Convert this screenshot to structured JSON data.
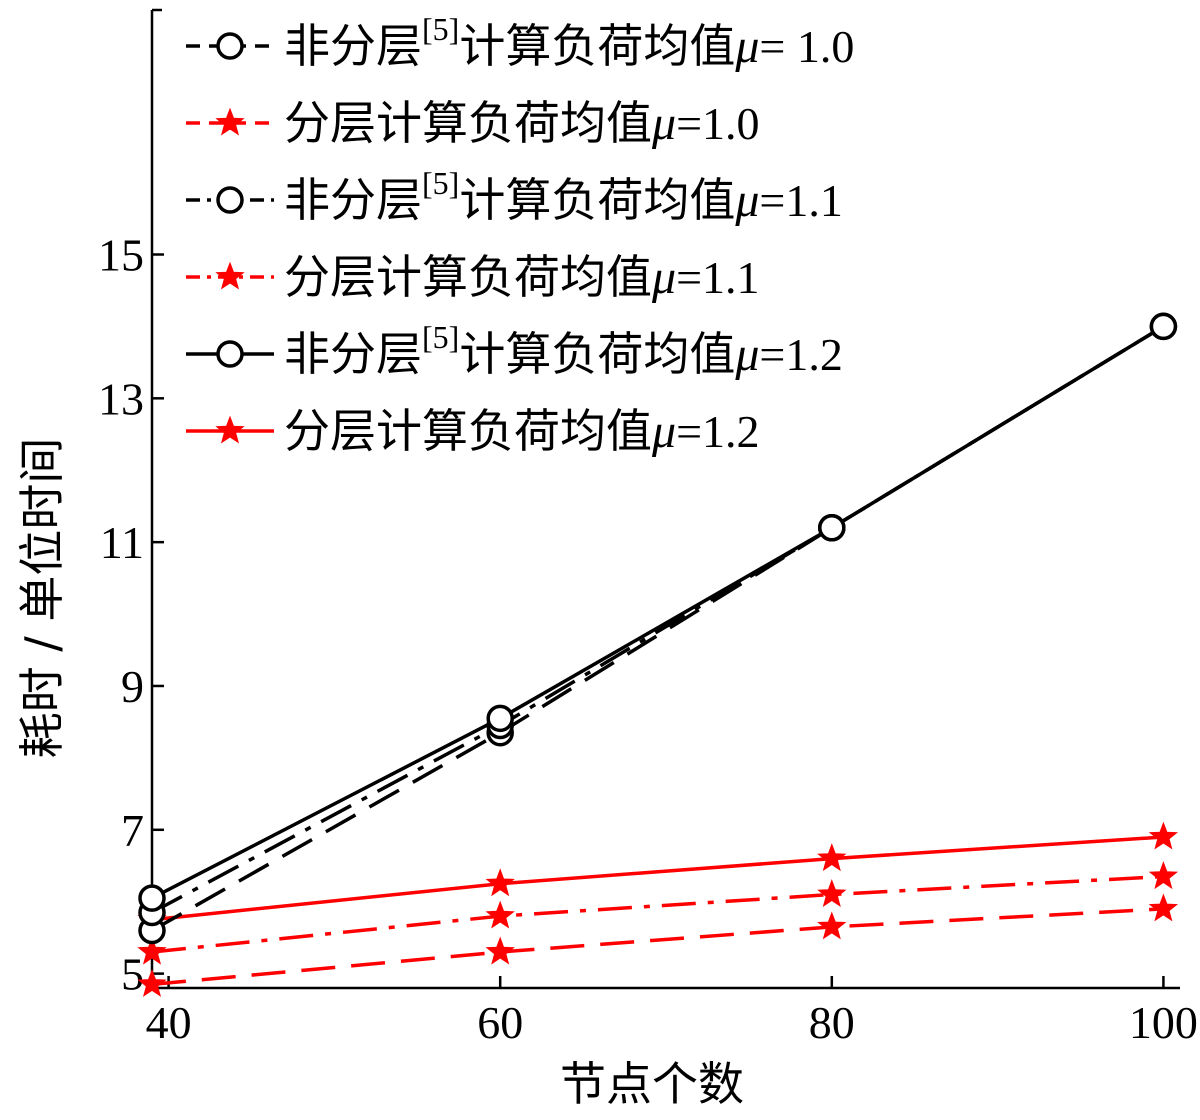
{
  "chart_data": {
    "type": "line",
    "title": "",
    "xlabel": "节点个数",
    "ylabel": "耗时 / 单位时间",
    "xlim": [
      39,
      101
    ],
    "ylim": [
      4.8,
      18.4
    ],
    "xticks": [
      40,
      60,
      80,
      100
    ],
    "yticks": [
      5,
      7,
      9,
      11,
      13,
      15
    ],
    "grid": false,
    "legend_position": "top-left",
    "x": [
      39,
      60,
      80,
      100
    ],
    "series": [
      {
        "name": "非分层[5]计算负荷均值μ= 1.0",
        "label_main": "非分层",
        "label_sup": "[5]",
        "label_rest": "计算负荷均值",
        "label_mu": "μ",
        "label_eq": "= 1.0",
        "color": "#000000",
        "marker": "circle",
        "line_style": "dashed",
        "values": [
          5.6,
          8.35,
          11.2,
          14.0
        ]
      },
      {
        "name": "分层计算负荷均值μ=1.0",
        "label_main": "分层计算负荷均值",
        "label_mu": "μ",
        "label_eq": "=1.0",
        "color": "#ff0000",
        "marker": "star",
        "line_style": "dashed",
        "values": [
          4.85,
          5.3,
          5.65,
          5.9
        ]
      },
      {
        "name": "非分层[5]计算负荷均值μ=1.1",
        "label_main": "非分层",
        "label_sup": "[5]",
        "label_rest": "计算负荷均值",
        "label_mu": "μ",
        "label_eq": "=1.1",
        "color": "#000000",
        "marker": "circle",
        "line_style": "dashdot",
        "values": [
          5.85,
          8.45,
          11.2,
          14.0
        ]
      },
      {
        "name": "分层计算负荷均值μ=1.1",
        "label_main": "分层计算负荷均值",
        "label_mu": "μ",
        "label_eq": "=1.1",
        "color": "#ff0000",
        "marker": "star",
        "line_style": "dashdot",
        "values": [
          5.3,
          5.8,
          6.1,
          6.35
        ]
      },
      {
        "name": "非分层[5]计算负荷均值μ=1.2",
        "label_main": "非分层",
        "label_sup": "[5]",
        "label_rest": "计算负荷均值",
        "label_mu": "μ",
        "label_eq": "=1.2",
        "color": "#000000",
        "marker": "circle",
        "line_style": "solid",
        "values": [
          6.05,
          8.55,
          11.2,
          14.0
        ]
      },
      {
        "name": "分层计算负荷均值μ=1.2",
        "label_main": "分层计算负荷均值",
        "label_mu": "μ",
        "label_eq": "=1.2",
        "color": "#ff0000",
        "marker": "star",
        "line_style": "solid",
        "values": [
          5.75,
          6.25,
          6.6,
          6.9
        ]
      }
    ]
  }
}
